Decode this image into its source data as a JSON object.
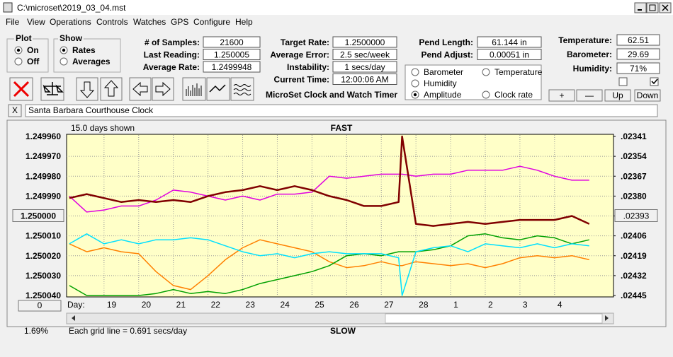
{
  "window_title": "C:\\microset\\2019_03_04.mst",
  "menu": [
    "File",
    "View",
    "Operations",
    "Controls",
    "Watches",
    "GPS",
    "Configure",
    "Help"
  ],
  "plot_group": {
    "title": "Plot",
    "options": [
      "On",
      "Off"
    ],
    "selected": 0
  },
  "show_group": {
    "title": "Show",
    "options": [
      "Rates",
      "Averages"
    ],
    "selected": 0
  },
  "fields": [
    [
      {
        "label": "# of Samples:",
        "value": "21600"
      },
      {
        "label": "Last Reading:",
        "value": "1.250005"
      },
      {
        "label": "Average Rate:",
        "value": "1.2499948"
      }
    ],
    [
      {
        "label": "Target Rate:",
        "value": "1.2500000"
      },
      {
        "label": "Average Error:",
        "value": "2.5 sec/week"
      },
      {
        "label": "Instability:",
        "value": "1 secs/day"
      },
      {
        "label": "Current Time:",
        "value": "12:00:06 AM"
      }
    ],
    [
      {
        "label": "Pend Length:",
        "value": "61.144 in"
      },
      {
        "label": "Pend Adjust:",
        "value": "0.00051 in"
      }
    ],
    [
      {
        "label": "Temperature:",
        "value": "62.51"
      },
      {
        "label": "Barometer:",
        "value": "29.69"
      },
      {
        "label": "Humidity:",
        "value": "71%"
      }
    ]
  ],
  "caption": "MicroSet Clock and Watch Timer",
  "adjust_buttons": [
    "+",
    "—",
    "Up",
    "Down"
  ],
  "checkboxes": [
    false,
    true
  ],
  "clock_close": "X",
  "clock_name": "Santa Barbara Courthouse Clock",
  "chart_data": {
    "type": "line",
    "days_shown": "15.0 days shown",
    "top_label": "FAST",
    "bottom_label": "SLOW",
    "x_axis_label": "Day:",
    "grid_note": "Each grid line = 0.691 secs/day",
    "percent": "1.69%",
    "offset_button": "0",
    "selected_series": 3,
    "grid": true,
    "xlim": [
      -1.08,
      14.7
    ],
    "xticks": [
      {
        "value": 0,
        "label": "19"
      },
      {
        "value": 1,
        "label": "20"
      },
      {
        "value": 2,
        "label": "21"
      },
      {
        "value": 3,
        "label": "22"
      },
      {
        "value": 4,
        "label": "23"
      },
      {
        "value": 5,
        "label": "24"
      },
      {
        "value": 6,
        "label": "25"
      },
      {
        "value": 7,
        "label": "26"
      },
      {
        "value": 8,
        "label": "27"
      },
      {
        "value": 9,
        "label": "28"
      },
      {
        "value": 10,
        "label": "1"
      },
      {
        "value": 11,
        "label": "2"
      },
      {
        "value": 12,
        "label": "3"
      },
      {
        "value": 13,
        "label": "4"
      }
    ],
    "ylim": [
      1.25004,
      1.24996
    ],
    "yticks": [
      {
        "value": 1.24996,
        "label": "1.249960"
      },
      {
        "value": 1.24997,
        "label": "1.249970"
      },
      {
        "value": 1.24998,
        "label": "1.249980"
      },
      {
        "value": 1.24999,
        "label": "1.249990"
      },
      {
        "value": 1.25,
        "label": "1.250000"
      },
      {
        "value": 1.25001,
        "label": "1.250010"
      },
      {
        "value": 1.25002,
        "label": "1.250020"
      },
      {
        "value": 1.25003,
        "label": "1.250030"
      },
      {
        "value": 1.25004,
        "label": "1.250040"
      }
    ],
    "y2lim": [
      0.02445,
      0.02341
    ],
    "y2ticks": [
      {
        "value": 0.02341,
        "label": ".02341"
      },
      {
        "value": 0.02354,
        "label": ".02354"
      },
      {
        "value": 0.02367,
        "label": ".02367"
      },
      {
        "value": 0.0238,
        "label": ".02380"
      },
      {
        "value": 0.02393,
        "label": ".02393"
      },
      {
        "value": 0.02406,
        "label": ".02406"
      },
      {
        "value": 0.02419,
        "label": ".02419"
      },
      {
        "value": 0.02432,
        "label": ".02432"
      },
      {
        "value": 0.02445,
        "label": ".02445"
      }
    ],
    "x": [
      -1,
      -0.5,
      0,
      0.5,
      1,
      1.5,
      2,
      2.5,
      3,
      3.5,
      4,
      4.5,
      5,
      5.5,
      6,
      6.5,
      7,
      7.5,
      8,
      8.5,
      8.6,
      9,
      9.5,
      10,
      10.5,
      11,
      11.5,
      12,
      12.5,
      13,
      13.5,
      14
    ],
    "series": [
      {
        "name": "Barometer",
        "color": "#ff8000",
        "values": [
          1.250014,
          1.250018,
          1.250016,
          1.250018,
          1.250019,
          1.250028,
          1.250035,
          1.250037,
          1.25003,
          1.250022,
          1.250016,
          1.250012,
          1.250014,
          1.250016,
          1.250018,
          1.250023,
          1.250026,
          1.250025,
          1.250023,
          1.250025,
          1.250025,
          1.250023,
          1.250024,
          1.250025,
          1.250024,
          1.250026,
          1.250024,
          1.250021,
          1.25002,
          1.250021,
          1.25002,
          1.250022
        ]
      },
      {
        "name": "Temperature",
        "color": "#00a000",
        "values": [
          1.250035,
          1.25004,
          1.25004,
          1.25004,
          1.25004,
          1.250039,
          1.250037,
          1.250039,
          1.250038,
          1.250039,
          1.250037,
          1.250034,
          1.250032,
          1.25003,
          1.250028,
          1.250025,
          1.25002,
          1.250019,
          1.25002,
          1.250018,
          1.250018,
          1.250018,
          1.250017,
          1.250015,
          1.25001,
          1.250009,
          1.250011,
          1.250012,
          1.25001,
          1.250011,
          1.250014,
          1.250012
        ]
      },
      {
        "name": "Humidity",
        "color": "#e000e0",
        "values": [
          1.24999,
          1.249998,
          1.249997,
          1.249995,
          1.249995,
          1.249992,
          1.249987,
          1.249988,
          1.24999,
          1.249992,
          1.24999,
          1.249992,
          1.249989,
          1.249989,
          1.249988,
          1.24998,
          1.249981,
          1.24998,
          1.249979,
          1.249979,
          1.249979,
          1.24998,
          1.249979,
          1.249979,
          1.249977,
          1.249977,
          1.249977,
          1.249975,
          1.249977,
          1.24998,
          1.249982,
          1.249982
        ]
      },
      {
        "name": "Amplitude",
        "color": "#00e0ff",
        "values": [
          1.250014,
          1.250009,
          1.250014,
          1.250012,
          1.250014,
          1.250012,
          1.250012,
          1.250011,
          1.250012,
          1.250015,
          1.250018,
          1.25002,
          1.250019,
          1.250021,
          1.250019,
          1.250018,
          1.250019,
          1.250019,
          1.250019,
          1.250021,
          1.25004,
          1.250018,
          1.250016,
          1.250015,
          1.250018,
          1.250014,
          1.250015,
          1.250016,
          1.250014,
          1.250016,
          1.250014,
          1.250015
        ]
      },
      {
        "name": "Clock rate",
        "color": "#800000",
        "values": [
          1.249991,
          1.249989,
          1.249991,
          1.249993,
          1.249992,
          1.249993,
          1.249992,
          1.249993,
          1.24999,
          1.249988,
          1.249987,
          1.249985,
          1.249987,
          1.249985,
          1.249987,
          1.24999,
          1.249992,
          1.249995,
          1.249995,
          1.249993,
          1.24996,
          1.250004,
          1.250005,
          1.250004,
          1.250003,
          1.250004,
          1.250003,
          1.250002,
          1.250002,
          1.250002,
          1.25,
          1.250004
        ]
      }
    ]
  }
}
